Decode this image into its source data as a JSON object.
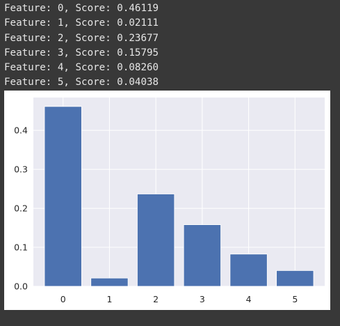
{
  "console": {
    "lines": [
      "Feature: 0, Score: 0.46119",
      "Feature: 1, Score: 0.02111",
      "Feature: 2, Score: 0.23677",
      "Feature: 3, Score: 0.15795",
      "Feature: 4, Score: 0.08260",
      "Feature: 5, Score: 0.04038"
    ]
  },
  "chart_data": {
    "type": "bar",
    "categories": [
      "0",
      "1",
      "2",
      "3",
      "4",
      "5"
    ],
    "values": [
      0.46119,
      0.02111,
      0.23677,
      0.15795,
      0.0826,
      0.04038
    ],
    "title": "",
    "xlabel": "",
    "ylabel": "",
    "ylim": [
      0,
      0.4842
    ],
    "xlim": [
      -0.64,
      5.64
    ],
    "yticks": [
      0.0,
      0.1,
      0.2,
      0.3,
      0.4
    ],
    "ytick_labels": [
      "0.0",
      "0.1",
      "0.2",
      "0.3",
      "0.4"
    ],
    "xtick_labels": [
      "0",
      "1",
      "2",
      "3",
      "4",
      "5"
    ],
    "bar_width": 0.8,
    "grid": true,
    "legend": "none",
    "colors": {
      "bar": "#4c72b0",
      "plot_background": "#eaeaf2",
      "grid": "#ffffff",
      "figure_background": "#ffffff",
      "console_background": "#383838",
      "console_text": "#e6e6e6"
    }
  }
}
